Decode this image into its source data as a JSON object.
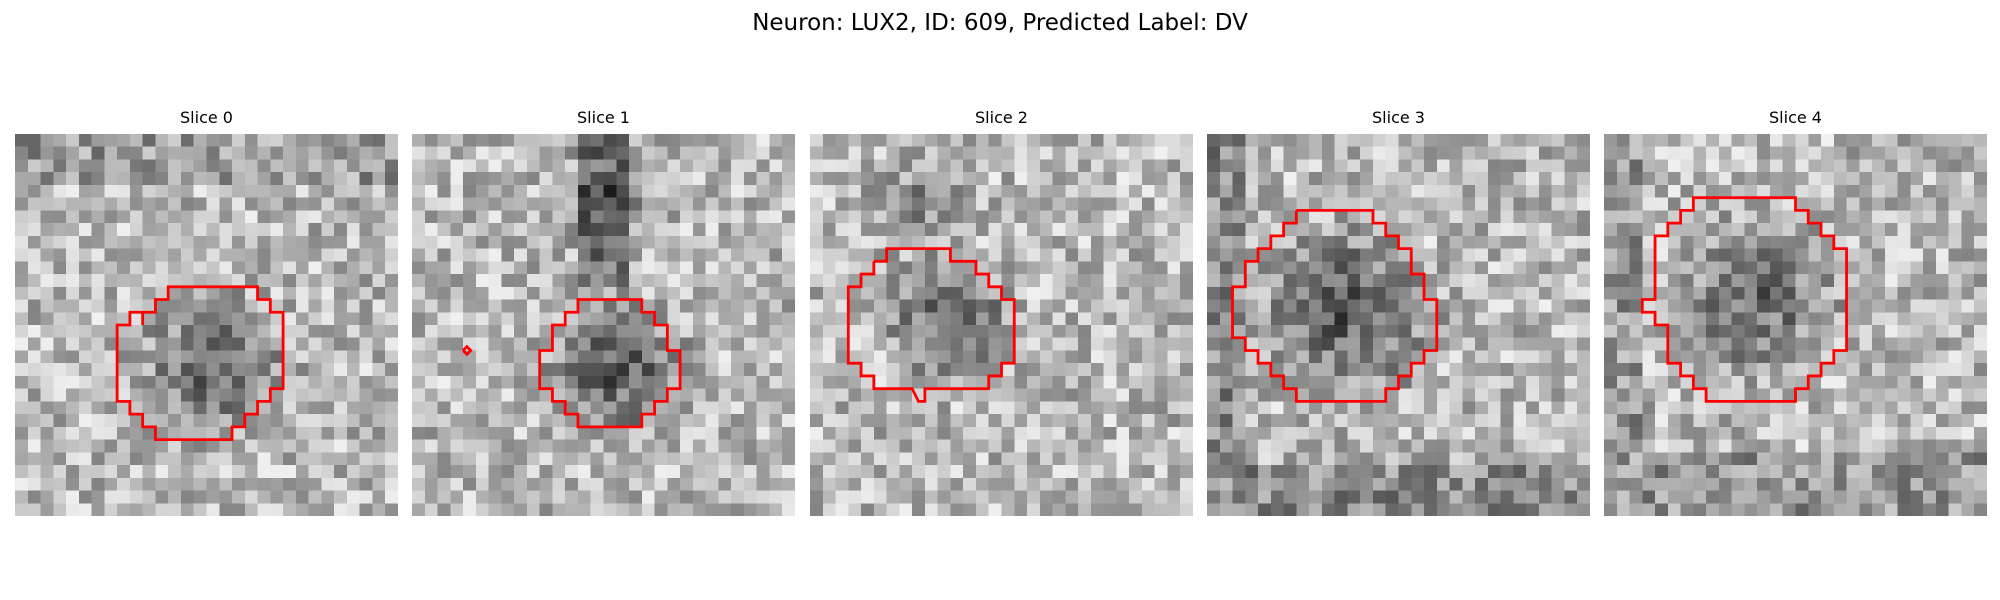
{
  "figure": {
    "title": "Neuron: LUX2, ID: 609, Predicted Label: DV"
  },
  "panels": [
    {
      "title": "Slice 0",
      "contour_color": "#ff0000",
      "contour_points_grid": [
        [
          10,
          15
        ],
        [
          10,
          14
        ],
        [
          11,
          14
        ],
        [
          11,
          13
        ],
        [
          12,
          13
        ],
        [
          12,
          12
        ],
        [
          13,
          12
        ],
        [
          14,
          12
        ],
        [
          15,
          12
        ],
        [
          16,
          12
        ],
        [
          17,
          12
        ],
        [
          18,
          12
        ],
        [
          19,
          12
        ],
        [
          19,
          13
        ],
        [
          20,
          13
        ],
        [
          20,
          14
        ],
        [
          21,
          14
        ],
        [
          21,
          15
        ],
        [
          21,
          16
        ],
        [
          21,
          17
        ],
        [
          21,
          18
        ],
        [
          21,
          19
        ],
        [
          21,
          20
        ],
        [
          20,
          20
        ],
        [
          20,
          21
        ],
        [
          19,
          21
        ],
        [
          19,
          22
        ],
        [
          18,
          22
        ],
        [
          18,
          23
        ],
        [
          17,
          23
        ],
        [
          17,
          24
        ],
        [
          16,
          24
        ],
        [
          15,
          24
        ],
        [
          14,
          24
        ],
        [
          13,
          24
        ],
        [
          12,
          24
        ],
        [
          11,
          24
        ],
        [
          11,
          23
        ],
        [
          10,
          23
        ],
        [
          10,
          22
        ],
        [
          9,
          22
        ],
        [
          9,
          21
        ],
        [
          8,
          21
        ],
        [
          8,
          20
        ],
        [
          8,
          19
        ],
        [
          8,
          18
        ],
        [
          8,
          17
        ],
        [
          8,
          16
        ],
        [
          8,
          15
        ],
        [
          9,
          15
        ],
        [
          9,
          14
        ],
        [
          10,
          14
        ]
      ]
    },
    {
      "title": "Slice 1",
      "contour_color": "#ff0000",
      "contour_points_grid": [
        [
          11,
          16
        ],
        [
          11,
          15
        ],
        [
          12,
          15
        ],
        [
          12,
          14
        ],
        [
          13,
          14
        ],
        [
          13,
          13
        ],
        [
          14,
          13
        ],
        [
          15,
          13
        ],
        [
          16,
          13
        ],
        [
          17,
          13
        ],
        [
          18,
          13
        ],
        [
          18,
          14
        ],
        [
          19,
          14
        ],
        [
          19,
          15
        ],
        [
          20,
          15
        ],
        [
          20,
          16
        ],
        [
          20,
          17
        ],
        [
          21,
          17
        ],
        [
          21,
          18
        ],
        [
          21,
          19
        ],
        [
          21,
          20
        ],
        [
          20,
          20
        ],
        [
          20,
          21
        ],
        [
          19,
          21
        ],
        [
          19,
          22
        ],
        [
          18,
          22
        ],
        [
          18,
          23
        ],
        [
          17,
          23
        ],
        [
          16,
          23
        ],
        [
          15,
          23
        ],
        [
          14,
          23
        ],
        [
          13,
          23
        ],
        [
          13,
          22
        ],
        [
          12,
          22
        ],
        [
          12,
          21
        ],
        [
          11,
          21
        ],
        [
          11,
          20
        ],
        [
          10,
          20
        ],
        [
          10,
          19
        ],
        [
          10,
          18
        ],
        [
          10,
          17
        ],
        [
          11,
          17
        ],
        [
          11,
          16
        ]
      ],
      "secondary_points_grid": [
        [
          4,
          17
        ],
        [
          4.3,
          16.7
        ],
        [
          4.6,
          17
        ],
        [
          4.3,
          17.3
        ],
        [
          4,
          17
        ]
      ]
    },
    {
      "title": "Slice 2",
      "contour_color": "#ff0000",
      "contour_points_grid": [
        [
          5,
          10
        ],
        [
          6,
          10
        ],
        [
          6,
          9
        ],
        [
          7,
          9
        ],
        [
          8,
          9
        ],
        [
          9,
          9
        ],
        [
          10,
          9
        ],
        [
          11,
          9
        ],
        [
          11,
          10
        ],
        [
          12,
          10
        ],
        [
          13,
          10
        ],
        [
          13,
          11
        ],
        [
          14,
          11
        ],
        [
          14,
          12
        ],
        [
          15,
          12
        ],
        [
          15,
          13
        ],
        [
          16,
          13
        ],
        [
          16,
          14
        ],
        [
          16,
          15
        ],
        [
          16,
          16
        ],
        [
          16,
          17
        ],
        [
          16,
          18
        ],
        [
          15,
          18
        ],
        [
          15,
          19
        ],
        [
          14,
          19
        ],
        [
          14,
          20
        ],
        [
          13,
          20
        ],
        [
          12,
          20
        ],
        [
          11,
          20
        ],
        [
          10,
          20
        ],
        [
          9,
          20
        ],
        [
          9,
          21
        ],
        [
          8.5,
          21
        ],
        [
          8,
          20
        ],
        [
          7,
          20
        ],
        [
          6,
          20
        ],
        [
          5,
          20
        ],
        [
          5,
          19
        ],
        [
          4,
          19
        ],
        [
          4,
          18
        ],
        [
          3,
          18
        ],
        [
          3,
          17
        ],
        [
          3,
          16
        ],
        [
          3,
          15
        ],
        [
          3,
          14
        ],
        [
          3,
          13
        ],
        [
          3,
          12
        ],
        [
          4,
          12
        ],
        [
          4,
          11
        ],
        [
          5,
          11
        ],
        [
          5,
          10
        ]
      ]
    },
    {
      "title": "Slice 3",
      "contour_color": "#ff0000",
      "contour_points_grid": [
        [
          7,
          6
        ],
        [
          8,
          6
        ],
        [
          9,
          6
        ],
        [
          10,
          6
        ],
        [
          11,
          6
        ],
        [
          12,
          6
        ],
        [
          13,
          6
        ],
        [
          13,
          7
        ],
        [
          14,
          7
        ],
        [
          14,
          8
        ],
        [
          15,
          8
        ],
        [
          15,
          9
        ],
        [
          16,
          9
        ],
        [
          16,
          10
        ],
        [
          16,
          11
        ],
        [
          17,
          11
        ],
        [
          17,
          12
        ],
        [
          17,
          13
        ],
        [
          18,
          13
        ],
        [
          18,
          14
        ],
        [
          18,
          15
        ],
        [
          18,
          16
        ],
        [
          18,
          17
        ],
        [
          17,
          17
        ],
        [
          17,
          18
        ],
        [
          16,
          18
        ],
        [
          16,
          19
        ],
        [
          15,
          19
        ],
        [
          15,
          20
        ],
        [
          14,
          20
        ],
        [
          14,
          21
        ],
        [
          13,
          21
        ],
        [
          12,
          21
        ],
        [
          11,
          21
        ],
        [
          10,
          21
        ],
        [
          9,
          21
        ],
        [
          8,
          21
        ],
        [
          7,
          21
        ],
        [
          7,
          20
        ],
        [
          6,
          20
        ],
        [
          6,
          19
        ],
        [
          5,
          19
        ],
        [
          5,
          18
        ],
        [
          4,
          18
        ],
        [
          4,
          17
        ],
        [
          3,
          17
        ],
        [
          3,
          16
        ],
        [
          2,
          16
        ],
        [
          2,
          15
        ],
        [
          2,
          14
        ],
        [
          2,
          13
        ],
        [
          2,
          12
        ],
        [
          3,
          12
        ],
        [
          3,
          11
        ],
        [
          3,
          10
        ],
        [
          4,
          10
        ],
        [
          4,
          9
        ],
        [
          5,
          9
        ],
        [
          5,
          8
        ],
        [
          6,
          8
        ],
        [
          6,
          7
        ],
        [
          7,
          7
        ],
        [
          7,
          6
        ]
      ]
    },
    {
      "title": "Slice 4",
      "contour_color": "#ff0000",
      "contour_points_grid": [
        [
          8,
          5
        ],
        [
          9,
          5
        ],
        [
          10,
          5
        ],
        [
          11,
          5
        ],
        [
          12,
          5
        ],
        [
          13,
          5
        ],
        [
          14,
          5
        ],
        [
          15,
          5
        ],
        [
          15,
          6
        ],
        [
          16,
          6
        ],
        [
          16,
          7
        ],
        [
          17,
          7
        ],
        [
          17,
          8
        ],
        [
          18,
          8
        ],
        [
          18,
          9
        ],
        [
          19,
          9
        ],
        [
          19,
          10
        ],
        [
          19,
          11
        ],
        [
          19,
          12
        ],
        [
          19,
          13
        ],
        [
          19,
          14
        ],
        [
          19,
          15
        ],
        [
          19,
          16
        ],
        [
          19,
          17
        ],
        [
          18,
          17
        ],
        [
          18,
          18
        ],
        [
          17,
          18
        ],
        [
          17,
          19
        ],
        [
          16,
          19
        ],
        [
          16,
          20
        ],
        [
          15,
          20
        ],
        [
          15,
          21
        ],
        [
          14,
          21
        ],
        [
          13,
          21
        ],
        [
          12,
          21
        ],
        [
          11,
          21
        ],
        [
          10,
          21
        ],
        [
          9,
          21
        ],
        [
          8,
          21
        ],
        [
          8,
          20
        ],
        [
          7,
          20
        ],
        [
          7,
          19
        ],
        [
          6,
          19
        ],
        [
          6,
          18
        ],
        [
          5,
          18
        ],
        [
          5,
          17
        ],
        [
          5,
          16
        ],
        [
          5,
          15
        ],
        [
          4,
          15
        ],
        [
          4,
          14
        ],
        [
          3,
          14
        ],
        [
          3,
          13
        ],
        [
          4,
          13
        ],
        [
          4,
          12
        ],
        [
          4,
          11
        ],
        [
          4,
          10
        ],
        [
          4,
          9
        ],
        [
          4,
          8
        ],
        [
          5,
          8
        ],
        [
          5,
          7
        ],
        [
          6,
          7
        ],
        [
          6,
          6
        ],
        [
          7,
          6
        ],
        [
          7,
          5
        ],
        [
          8,
          5
        ]
      ]
    }
  ]
}
